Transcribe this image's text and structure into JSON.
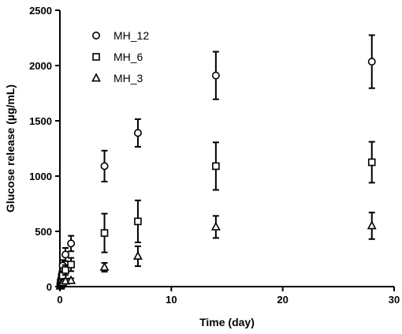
{
  "chart_data": {
    "type": "scatter",
    "xlabel": "Time (day)",
    "ylabel": "Glucose release (µg/mL)",
    "xlim": [
      0,
      30
    ],
    "ylim": [
      0,
      2500
    ],
    "xticks": [
      0,
      10,
      20,
      30
    ],
    "yticks": [
      0,
      500,
      1000,
      1500,
      2000,
      2500
    ],
    "grid": false,
    "legend_position": "top-left",
    "series": [
      {
        "name": "MH_12",
        "marker": "circle",
        "points": [
          {
            "x": 0.04,
            "y": 20,
            "err": 15
          },
          {
            "x": 0.08,
            "y": 60,
            "err": 25
          },
          {
            "x": 0.17,
            "y": 110,
            "err": 30
          },
          {
            "x": 0.25,
            "y": 190,
            "err": 50
          },
          {
            "x": 0.5,
            "y": 290,
            "err": 60
          },
          {
            "x": 1,
            "y": 390,
            "err": 70
          },
          {
            "x": 4,
            "y": 1090,
            "err": 140
          },
          {
            "x": 7,
            "y": 1390,
            "err": 125
          },
          {
            "x": 14,
            "y": 1910,
            "err": 215
          },
          {
            "x": 28,
            "y": 2035,
            "err": 240
          }
        ]
      },
      {
        "name": "MH_6",
        "marker": "square",
        "points": [
          {
            "x": 0.04,
            "y": 10,
            "err": 10
          },
          {
            "x": 0.08,
            "y": 35,
            "err": 15
          },
          {
            "x": 0.17,
            "y": 60,
            "err": 25
          },
          {
            "x": 0.25,
            "y": 100,
            "err": 35
          },
          {
            "x": 0.5,
            "y": 150,
            "err": 45
          },
          {
            "x": 1,
            "y": 200,
            "err": 60
          },
          {
            "x": 4,
            "y": 485,
            "err": 175
          },
          {
            "x": 7,
            "y": 590,
            "err": 190
          },
          {
            "x": 14,
            "y": 1090,
            "err": 215
          },
          {
            "x": 28,
            "y": 1125,
            "err": 185
          }
        ]
      },
      {
        "name": "MH_3",
        "marker": "triangle",
        "points": [
          {
            "x": 0.04,
            "y": 5,
            "err": 5
          },
          {
            "x": 0.08,
            "y": 15,
            "err": 8
          },
          {
            "x": 0.17,
            "y": 25,
            "err": 12
          },
          {
            "x": 0.25,
            "y": 35,
            "err": 15
          },
          {
            "x": 0.5,
            "y": 50,
            "err": 20
          },
          {
            "x": 1,
            "y": 55,
            "err": 20
          },
          {
            "x": 4,
            "y": 175,
            "err": 40
          },
          {
            "x": 7,
            "y": 275,
            "err": 90
          },
          {
            "x": 14,
            "y": 540,
            "err": 100
          },
          {
            "x": 28,
            "y": 550,
            "err": 120
          }
        ]
      }
    ]
  }
}
